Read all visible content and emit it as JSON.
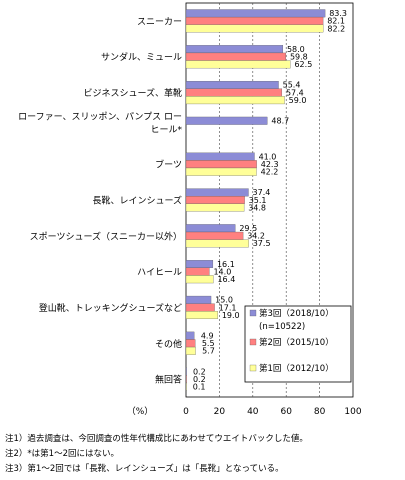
{
  "chart_data": {
    "type": "bar",
    "orientation": "horizontal",
    "categories": [
      "スニーカー",
      "サンダル、ミュール",
      "ビジネスシューズ、革靴",
      "ローファー、スリッポン、パンプス ロー\nヒール*",
      "ブーツ",
      "長靴、レインシューズ",
      "スポーツシューズ（スニーカー以外）",
      "ハイヒール",
      "登山靴、トレッキングシューズなど",
      "その他",
      "無回答"
    ],
    "series": [
      {
        "name": "第3回（2018/10）",
        "sublabel": "(n=10522)",
        "color": "#8c8cd6",
        "values": [
          83.3,
          58.0,
          55.4,
          48.7,
          41.0,
          37.4,
          29.5,
          16.1,
          15.0,
          4.9,
          0.2
        ]
      },
      {
        "name": "第2回（2015/10）",
        "color": "#ff8080",
        "values": [
          82.1,
          59.8,
          57.4,
          null,
          42.3,
          35.1,
          34.2,
          14.0,
          17.1,
          5.5,
          0.2
        ]
      },
      {
        "name": "第1回（2012/10）",
        "color": "#ffff99",
        "values": [
          82.2,
          62.5,
          59.0,
          null,
          42.2,
          34.8,
          37.5,
          16.4,
          19.0,
          5.7,
          0.1
        ]
      }
    ],
    "xlabel": "（%）",
    "xlim": [
      0,
      100
    ],
    "xticks": [
      0,
      20,
      40,
      60,
      80,
      100
    ],
    "grid": "vertical-dashed",
    "legend": "bottom-right"
  },
  "notes": [
    "注1）過去調査は、今回調査の性年代構成比にあわせてウエイトバックした値。",
    "注2）*は第1～2回にはない。",
    "注3）第1～2回では「長靴、レインシューズ」は「長靴」となっている。"
  ]
}
